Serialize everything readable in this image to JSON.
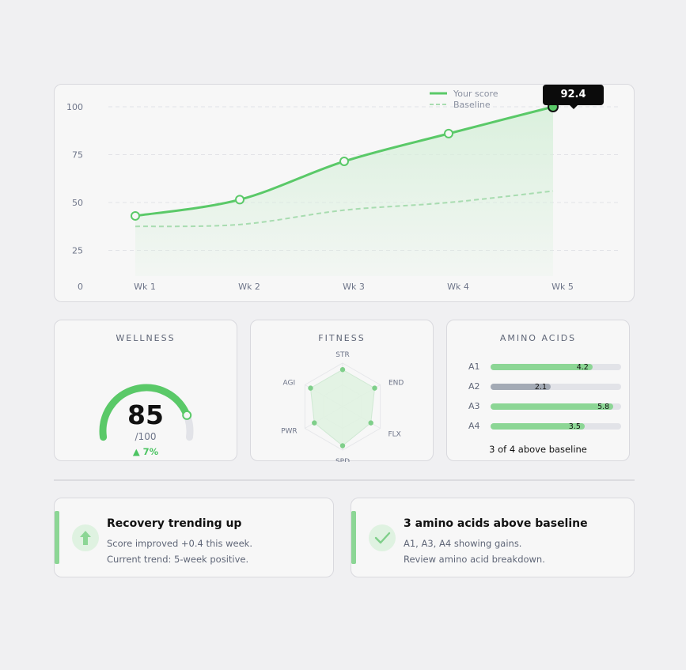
{
  "main_chart": {
    "legend": {
      "score_label": "Your score",
      "baseline_label": "Baseline"
    },
    "tooltip_value": "92.4",
    "colors": {
      "score": "#5ac968",
      "baseline": "#a8dcb0",
      "area": "#d9f0dc"
    },
    "chart_data": {
      "type": "line",
      "categories": [
        "Wk 1",
        "Wk 2",
        "Wk 3",
        "Wk 4",
        "Wk 5"
      ],
      "y_ticks": [
        "100",
        "75",
        "50",
        "25",
        "0"
      ],
      "ylim": [
        0,
        100
      ],
      "series": [
        {
          "name": "Your score",
          "values": [
            43,
            51.5,
            71.5,
            86,
            100
          ]
        },
        {
          "name": "Baseline",
          "values": [
            37.5,
            38.5,
            46,
            50,
            56
          ]
        }
      ],
      "grid": true,
      "legend_position": "top-right"
    }
  },
  "wellness": {
    "title": "WELLNESS",
    "value": "85",
    "max_label": "/100",
    "delta": "▲ 7%",
    "fraction": 0.85
  },
  "fitness": {
    "title": "FITNESS",
    "axes": [
      "STR",
      "END",
      "FLX",
      "SPD",
      "PWR",
      "AGI"
    ],
    "values": [
      0.85,
      0.85,
      0.75,
      0.9,
      0.75,
      0.85
    ]
  },
  "amino": {
    "title": "AMINO ACIDS",
    "rows": [
      {
        "name": "A1",
        "value": "4.2",
        "fraction": 0.78,
        "color": "#8cd695"
      },
      {
        "name": "A2",
        "value": "2.1",
        "fraction": 0.46,
        "color": "#a3aab5"
      },
      {
        "name": "A3",
        "value": "5.8",
        "fraction": 0.94,
        "color": "#8cd695"
      },
      {
        "name": "A4",
        "value": "3.5",
        "fraction": 0.72,
        "color": "#8cd695"
      }
    ],
    "summary": "3 of 4 above baseline"
  },
  "insights": [
    {
      "title": "Recovery trending up",
      "line1": "Score improved +0.4 this week.",
      "line2": "Current trend: 5-week positive.",
      "icon": "arrow-up-icon"
    },
    {
      "title": "3 amino acids above baseline",
      "line1": "A1, A3, A4 showing gains.",
      "line2": "Review amino acid breakdown.",
      "icon": "check-icon"
    }
  ]
}
